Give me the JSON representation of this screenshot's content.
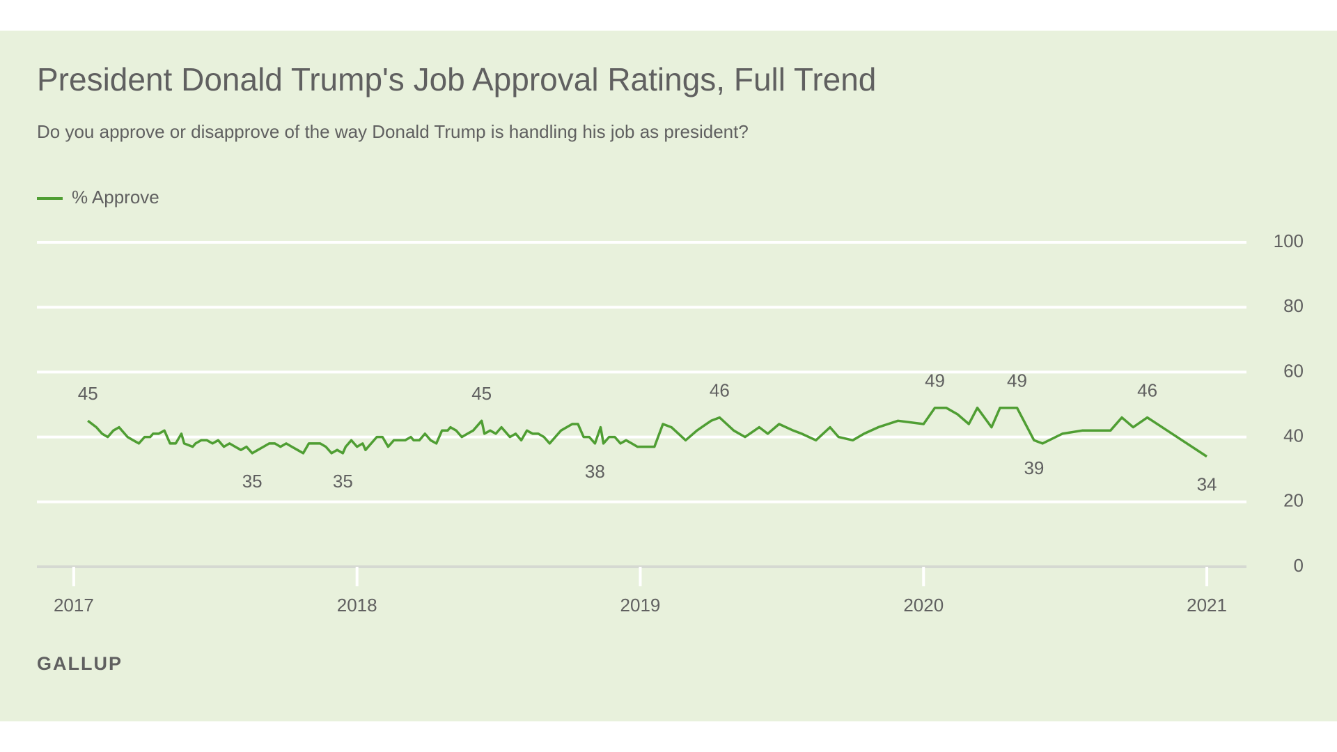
{
  "chart_data": {
    "type": "line",
    "title": "President Donald Trump's Job Approval Ratings, Full Trend",
    "subtitle": "Do you approve or disapprove of the way Donald Trump is handling his job as president?",
    "source": "GALLUP",
    "x": [
      2017.05,
      2017.08,
      2017.1,
      2017.12,
      2017.14,
      2017.16,
      2017.17,
      2017.19,
      2017.21,
      2017.23,
      2017.25,
      2017.27,
      2017.28,
      2017.3,
      2017.32,
      2017.34,
      2017.36,
      2017.38,
      2017.39,
      2017.42,
      2017.43,
      2017.45,
      2017.47,
      2017.49,
      2017.51,
      2017.53,
      2017.55,
      2017.57,
      2017.59,
      2017.61,
      2017.63,
      2017.65,
      2017.67,
      2017.69,
      2017.71,
      2017.73,
      2017.75,
      2017.77,
      2017.79,
      2017.81,
      2017.83,
      2017.85,
      2017.87,
      2017.89,
      2017.91,
      2017.93,
      2017.95,
      2017.96,
      2017.98,
      2018.0,
      2018.02,
      2018.03,
      2018.05,
      2018.07,
      2018.09,
      2018.11,
      2018.13,
      2018.15,
      2018.17,
      2018.19,
      2018.2,
      2018.22,
      2018.24,
      2018.26,
      2018.28,
      2018.3,
      2018.32,
      2018.33,
      2018.35,
      2018.37,
      2018.39,
      2018.41,
      2018.44,
      2018.45,
      2018.47,
      2018.49,
      2018.51,
      2018.52,
      2018.54,
      2018.56,
      2018.58,
      2018.6,
      2018.62,
      2018.64,
      2018.66,
      2018.68,
      2018.7,
      2018.72,
      2018.74,
      2018.76,
      2018.78,
      2018.8,
      2018.82,
      2018.84,
      2018.86,
      2018.87,
      2018.89,
      2018.91,
      2018.93,
      2018.95,
      2018.97,
      2018.99,
      2019.01,
      2019.05,
      2019.08,
      2019.11,
      2019.16,
      2019.2,
      2019.25,
      2019.28,
      2019.33,
      2019.37,
      2019.42,
      2019.45,
      2019.49,
      2019.54,
      2019.57,
      2019.62,
      2019.67,
      2019.7,
      2019.75,
      2019.79,
      2019.84,
      2019.91,
      2020.0,
      2020.04,
      2020.08,
      2020.12,
      2020.16,
      2020.19,
      2020.24,
      2020.27,
      2020.33,
      2020.39,
      2020.42,
      2020.49,
      2020.56,
      2020.66,
      2020.7,
      2020.74,
      2020.79,
      2021.0
    ],
    "series": [
      {
        "name": "% Approve",
        "color": "#4f9e33",
        "values": [
          45,
          43,
          41,
          40,
          42,
          43,
          42,
          40,
          39,
          38,
          40,
          40,
          41,
          41,
          42,
          38,
          38,
          41,
          38,
          37,
          38,
          39,
          39,
          38,
          39,
          37,
          38,
          37,
          36,
          37,
          35,
          36,
          37,
          38,
          38,
          37,
          38,
          37,
          36,
          35,
          38,
          38,
          38,
          37,
          35,
          36,
          35,
          37,
          39,
          37,
          38,
          36,
          38,
          40,
          40,
          37,
          39,
          39,
          39,
          40,
          39,
          39,
          41,
          39,
          38,
          42,
          42,
          43,
          42,
          40,
          41,
          42,
          45,
          41,
          42,
          41,
          43,
          42,
          40,
          41,
          39,
          42,
          41,
          41,
          40,
          38,
          40,
          42,
          43,
          44,
          44,
          40,
          40,
          38,
          43,
          38,
          40,
          40,
          38,
          39,
          38,
          37,
          37,
          37,
          44,
          43,
          39,
          42,
          45,
          46,
          42,
          40,
          43,
          41,
          44,
          42,
          41,
          39,
          43,
          40,
          39,
          41,
          43,
          45,
          44,
          49,
          49,
          47,
          44,
          49,
          43,
          49,
          49,
          39,
          38,
          41,
          42,
          42,
          46,
          43,
          46,
          34
        ]
      }
    ],
    "data_labels": [
      0,
      30,
      46,
      72,
      93,
      109,
      125,
      132,
      133,
      140,
      141
    ],
    "xlim": [
      2016.87,
      2021.14
    ],
    "xticks": [
      2017,
      2018,
      2019,
      2020,
      2021
    ],
    "ylim": [
      0,
      100
    ],
    "yticks": [
      0,
      20,
      40,
      60,
      80,
      100
    ],
    "grid": true,
    "legend": "top-left"
  }
}
